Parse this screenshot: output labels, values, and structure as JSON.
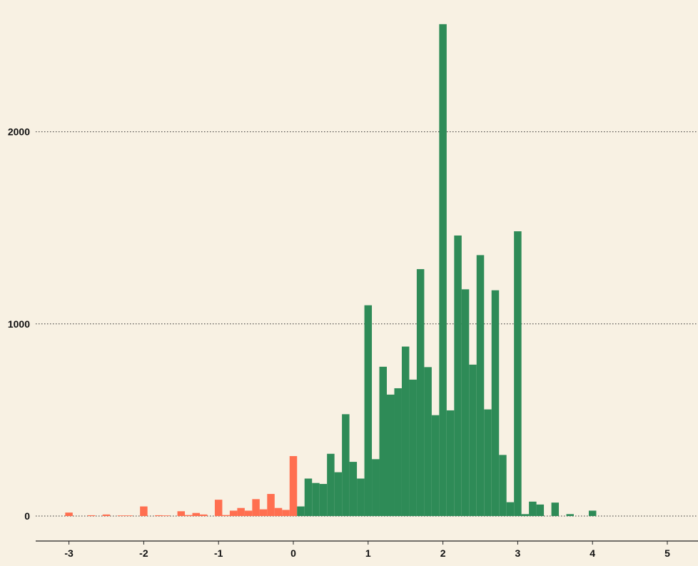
{
  "chart_data": {
    "type": "bar",
    "title": "",
    "xlabel": "",
    "ylabel": "",
    "xlim": [
      -3.5,
      5.4
    ],
    "ylim": [
      -45,
      2560
    ],
    "x_ticks": [
      -3,
      -2,
      -1,
      0,
      1,
      2,
      3,
      4,
      5
    ],
    "x_tick_labels": [
      "-3",
      "-2",
      "-1",
      "0",
      "1",
      "2",
      "3",
      "4",
      "5"
    ],
    "y_ticks": [
      0,
      1000,
      2000
    ],
    "y_tick_labels": [
      "0",
      "1000",
      "2000"
    ],
    "grid": "horizontal-dotted",
    "legend": "none",
    "bin_width": 0.1,
    "colors": {
      "background": "#f8f1e3",
      "negative": "#ff6f50",
      "positive": "#2e8b57",
      "axis": "#222222"
    },
    "series": [
      {
        "color_key": "negative",
        "bins": [
          {
            "x": -3.0,
            "value": 18
          },
          {
            "x": -2.7,
            "value": 4
          },
          {
            "x": -2.5,
            "value": 8
          },
          {
            "x": -2.3,
            "value": 3
          },
          {
            "x": -2.2,
            "value": 3
          },
          {
            "x": -2.0,
            "value": 50
          },
          {
            "x": -1.8,
            "value": 4
          },
          {
            "x": -1.7,
            "value": 3
          },
          {
            "x": -1.5,
            "value": 25
          },
          {
            "x": -1.4,
            "value": 5
          },
          {
            "x": -1.3,
            "value": 16
          },
          {
            "x": -1.2,
            "value": 8
          },
          {
            "x": -1.0,
            "value": 85
          },
          {
            "x": -0.9,
            "value": 5
          },
          {
            "x": -0.8,
            "value": 28
          },
          {
            "x": -0.7,
            "value": 42
          },
          {
            "x": -0.6,
            "value": 28
          },
          {
            "x": -0.5,
            "value": 88
          },
          {
            "x": -0.4,
            "value": 35
          },
          {
            "x": -0.3,
            "value": 115
          },
          {
            "x": -0.2,
            "value": 42
          },
          {
            "x": -0.1,
            "value": 32
          },
          {
            "x": 0.0,
            "value": 312
          }
        ]
      },
      {
        "color_key": "positive",
        "bins": [
          {
            "x": 0.1,
            "value": 50
          },
          {
            "x": 0.2,
            "value": 195
          },
          {
            "x": 0.3,
            "value": 172
          },
          {
            "x": 0.4,
            "value": 167
          },
          {
            "x": 0.5,
            "value": 324
          },
          {
            "x": 0.6,
            "value": 228
          },
          {
            "x": 0.7,
            "value": 530
          },
          {
            "x": 0.8,
            "value": 282
          },
          {
            "x": 0.9,
            "value": 195
          },
          {
            "x": 1.0,
            "value": 1097
          },
          {
            "x": 1.1,
            "value": 296
          },
          {
            "x": 1.2,
            "value": 777
          },
          {
            "x": 1.3,
            "value": 632
          },
          {
            "x": 1.4,
            "value": 665
          },
          {
            "x": 1.5,
            "value": 882
          },
          {
            "x": 1.6,
            "value": 710
          },
          {
            "x": 1.7,
            "value": 1285
          },
          {
            "x": 1.8,
            "value": 775
          },
          {
            "x": 1.9,
            "value": 525
          },
          {
            "x": 2.0,
            "value": 2560
          },
          {
            "x": 2.1,
            "value": 550
          },
          {
            "x": 2.2,
            "value": 1460
          },
          {
            "x": 2.3,
            "value": 1180
          },
          {
            "x": 2.4,
            "value": 788
          },
          {
            "x": 2.5,
            "value": 1358
          },
          {
            "x": 2.6,
            "value": 555
          },
          {
            "x": 2.7,
            "value": 1175
          },
          {
            "x": 2.8,
            "value": 318
          },
          {
            "x": 2.9,
            "value": 72
          },
          {
            "x": 3.0,
            "value": 1482
          },
          {
            "x": 3.1,
            "value": 10
          },
          {
            "x": 3.2,
            "value": 75
          },
          {
            "x": 3.3,
            "value": 60
          },
          {
            "x": 3.5,
            "value": 70
          },
          {
            "x": 3.7,
            "value": 10
          },
          {
            "x": 4.0,
            "value": 28
          }
        ]
      }
    ]
  }
}
